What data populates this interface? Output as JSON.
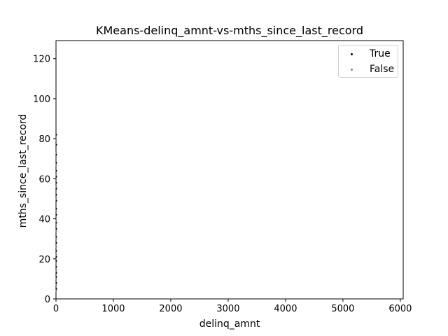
{
  "chart_data": {
    "type": "scatter",
    "title": "KMeans-delinq_amnt-vs-mths_since_last_record",
    "xlabel": "delinq_amnt",
    "ylabel": "mths_since_last_record",
    "xlim": [
      0,
      6050
    ],
    "ylim": [
      0,
      129
    ],
    "xticks": [
      "0",
      "1000",
      "2000",
      "3000",
      "4000",
      "5000",
      "6000"
    ],
    "yticks": [
      "0",
      "20",
      "40",
      "60",
      "80",
      "100",
      "120"
    ],
    "grid": false,
    "legend_position": "top-right",
    "series": [
      {
        "name": "True",
        "color": "#000000",
        "x": [
          0,
          0,
          0,
          0,
          0,
          0,
          0,
          0,
          0,
          0,
          0,
          0,
          0,
          0,
          0,
          0,
          0,
          0,
          0,
          0,
          0,
          0,
          0,
          0
        ],
        "y": [
          5,
          8,
          11,
          13,
          16,
          19,
          21,
          24,
          28,
          31,
          35,
          38,
          42,
          45,
          49,
          52,
          55,
          58,
          61,
          64,
          68,
          72,
          77,
          82
        ]
      },
      {
        "name": "False",
        "color": "#808080",
        "x": [
          0,
          0,
          0,
          0,
          0,
          0,
          0,
          0,
          0,
          0,
          0,
          0,
          0,
          0,
          0,
          0,
          0
        ],
        "y": [
          4,
          7,
          10,
          14,
          18,
          22,
          26,
          30,
          34,
          39,
          44,
          50,
          56,
          62,
          67,
          73,
          79
        ]
      }
    ]
  }
}
